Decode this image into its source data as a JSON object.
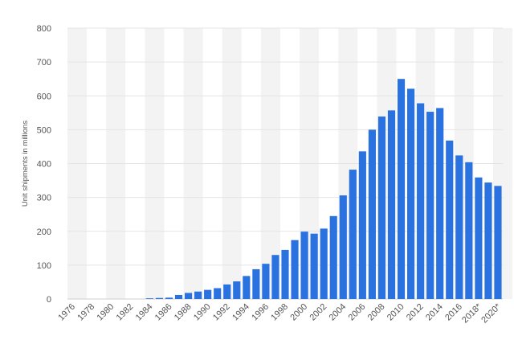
{
  "chart_data": {
    "type": "bar",
    "title": "",
    "xlabel": "",
    "ylabel": "Unit shipments in millions",
    "ylim": [
      0,
      800
    ],
    "yticks": [
      0,
      100,
      200,
      300,
      400,
      500,
      600,
      700,
      800
    ],
    "grid": "horizontal",
    "alternating_band_colors": [
      "#f3f3f3",
      "#ffffff"
    ],
    "bar_color": "#2a72e0",
    "categories": [
      "1976",
      "1977",
      "1978",
      "1979",
      "1980",
      "1981",
      "1982",
      "1983",
      "1984",
      "1985",
      "1986",
      "1987",
      "1988",
      "1989",
      "1990",
      "1991",
      "1992",
      "1993",
      "1994",
      "1995",
      "1996",
      "1997",
      "1998",
      "1999",
      "2000",
      "2001",
      "2002",
      "2003",
      "2004",
      "2005",
      "2006",
      "2007",
      "2008",
      "2009",
      "2010",
      "2011",
      "2012",
      "2013",
      "2014",
      "2015",
      "2016",
      "2017",
      "2018*",
      "2019*",
      "2020*"
    ],
    "tick_labels": [
      "1976",
      "1978",
      "1980",
      "1982",
      "1984",
      "1986",
      "1988",
      "1990",
      "1992",
      "1994",
      "1996",
      "1998",
      "2000",
      "2002",
      "2004",
      "2006",
      "2008",
      "2010",
      "2012",
      "2014",
      "2016",
      "2018*",
      "2020*"
    ],
    "values": [
      0,
      0,
      0,
      0,
      0,
      0,
      0,
      0,
      2,
      3,
      4,
      12,
      18,
      22,
      27,
      32,
      43,
      52,
      68,
      88,
      104,
      130,
      145,
      174,
      199,
      193,
      208,
      245,
      306,
      382,
      436,
      500,
      539,
      557,
      650,
      621,
      578,
      553,
      564,
      468,
      424,
      404,
      359,
      344,
      334
    ]
  }
}
